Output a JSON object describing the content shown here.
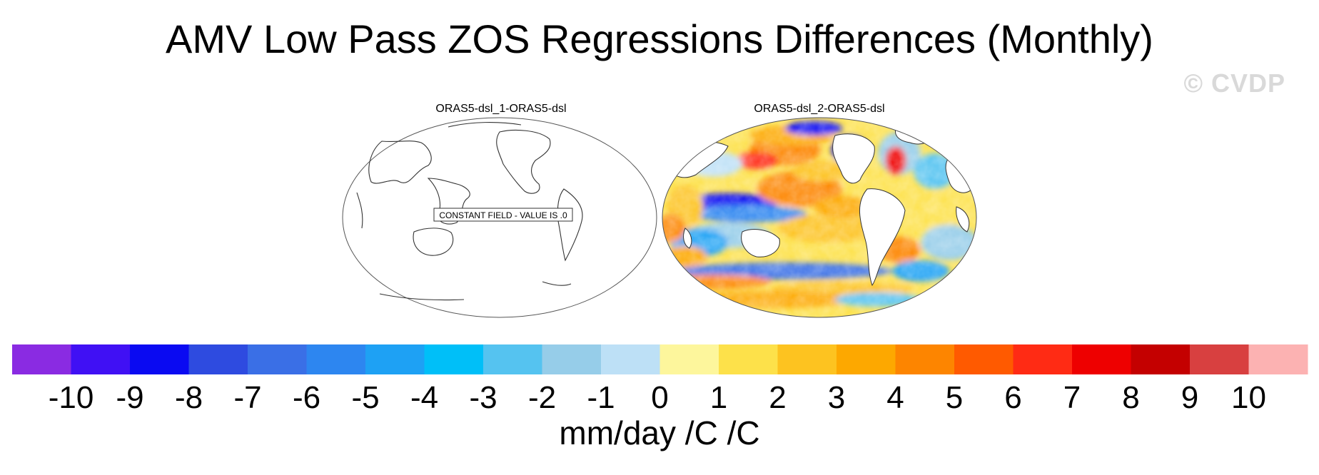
{
  "title": "AMV Low Pass ZOS Regressions Differences (Monthly)",
  "watermark": "© CVDP",
  "panels": [
    {
      "title": "ORAS5-dsl_1-ORAS5-dsl",
      "note": "CONSTANT FIELD - VALUE IS .0"
    },
    {
      "title": "ORAS5-dsl_2-ORAS5-dsl"
    }
  ],
  "colorbar": {
    "levels": [
      "-10",
      "-9",
      "-8",
      "-7",
      "-6",
      "-5",
      "-4",
      "-3",
      "-2",
      "-1",
      "0",
      "1",
      "2",
      "3",
      "4",
      "5",
      "6",
      "7",
      "8",
      "9",
      "10"
    ],
    "colors": [
      "#8a2be2",
      "#4010f4",
      "#0a0af2",
      "#2e4be0",
      "#3a6fe6",
      "#2d86f0",
      "#1ea1f4",
      "#00bff8",
      "#55c3f0",
      "#96cde9",
      "#bde0f6",
      "#fdf69c",
      "#fde14a",
      "#fdc320",
      "#fda800",
      "#fd8500",
      "#ff5a00",
      "#ff2b14",
      "#ee0000",
      "#c40000",
      "#d84040",
      "#fcb2b2"
    ],
    "units": "mm/day /C /C"
  }
}
